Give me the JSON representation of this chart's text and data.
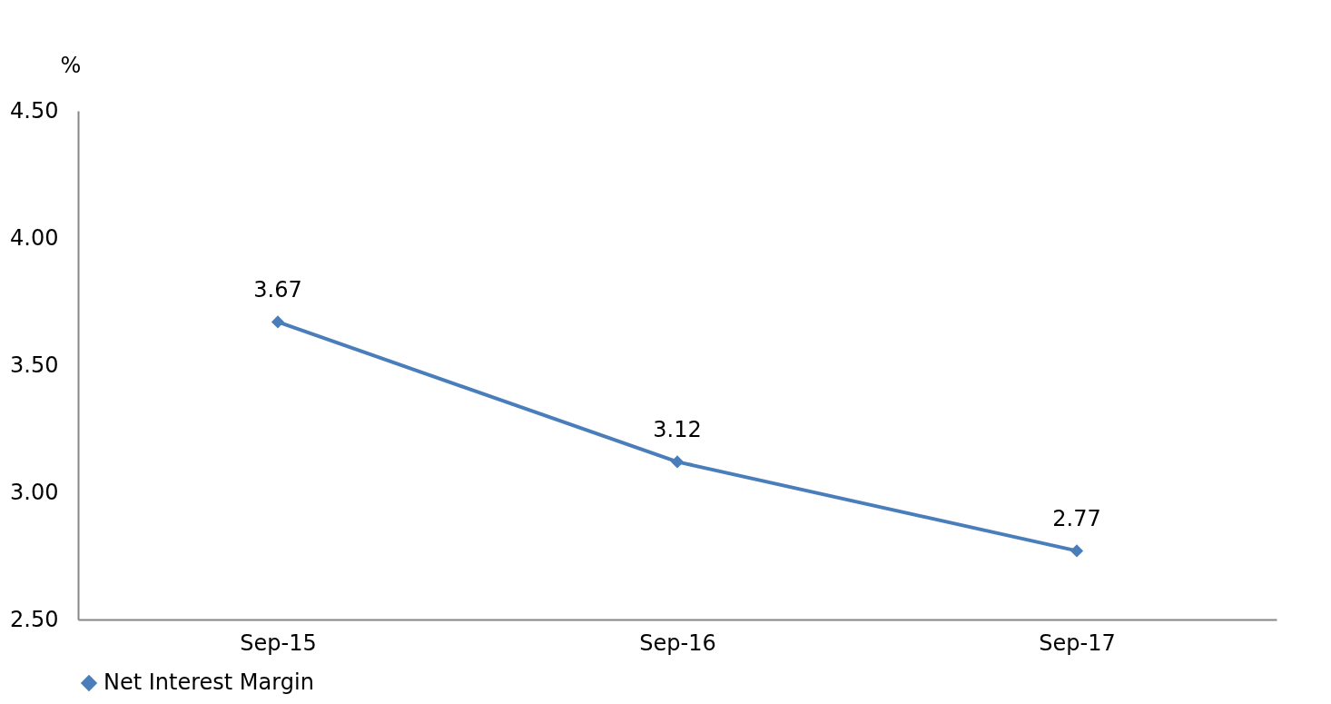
{
  "chart_data": {
    "type": "line",
    "ylabel": "%",
    "categories": [
      "Sep-15",
      "Sep-16",
      "Sep-17"
    ],
    "series": [
      {
        "name": "Net Interest Margin",
        "color": "#4a7ebb",
        "values": [
          3.67,
          3.12,
          2.77
        ]
      }
    ],
    "ylim": [
      2.5,
      4.5
    ],
    "yticks": [
      {
        "value": 2.5,
        "label": "2.50"
      },
      {
        "value": 3,
        "label": "3.00"
      },
      {
        "value": 3.5,
        "label": "3.50"
      },
      {
        "value": 4,
        "label": "4.00"
      },
      {
        "value": 4.5,
        "label": "4.50"
      }
    ],
    "grid": false,
    "legend": "bottom",
    "marker": "diamond",
    "line_style": "solid",
    "data_labels": true
  }
}
